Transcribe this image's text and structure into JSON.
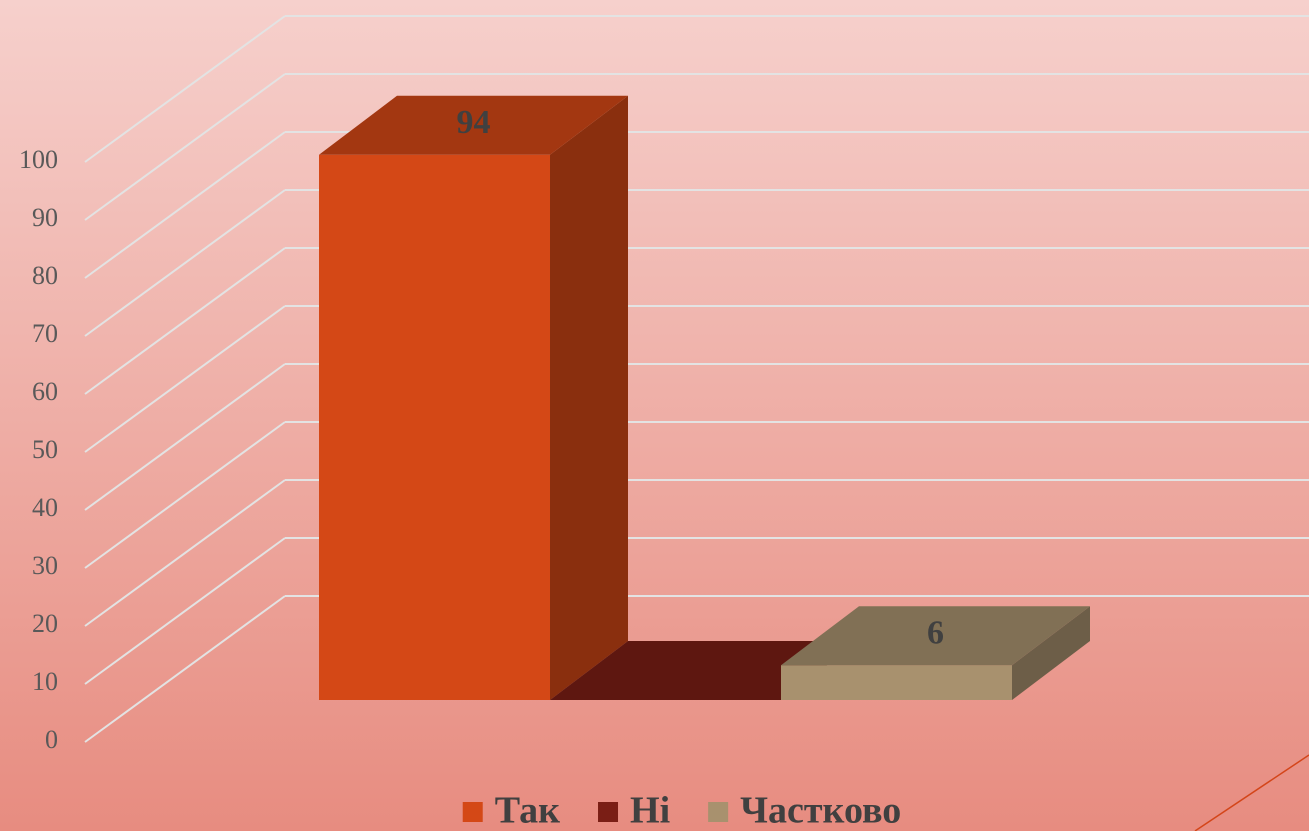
{
  "chart_data": {
    "type": "bar",
    "categories": [
      null
    ],
    "series": [
      {
        "name": "Так",
        "color": "#d44816",
        "values": [
          94
        ]
      },
      {
        "name": "Ні",
        "color": "#7a1e15",
        "values": [
          0
        ]
      },
      {
        "name": "Частково",
        "color": "#a8916e",
        "values": [
          6
        ]
      }
    ],
    "ylim": [
      0,
      100
    ],
    "yticks": [
      0,
      10,
      20,
      30,
      40,
      50,
      60,
      70,
      80,
      90,
      100
    ],
    "grid": true,
    "legend": "bottom"
  }
}
